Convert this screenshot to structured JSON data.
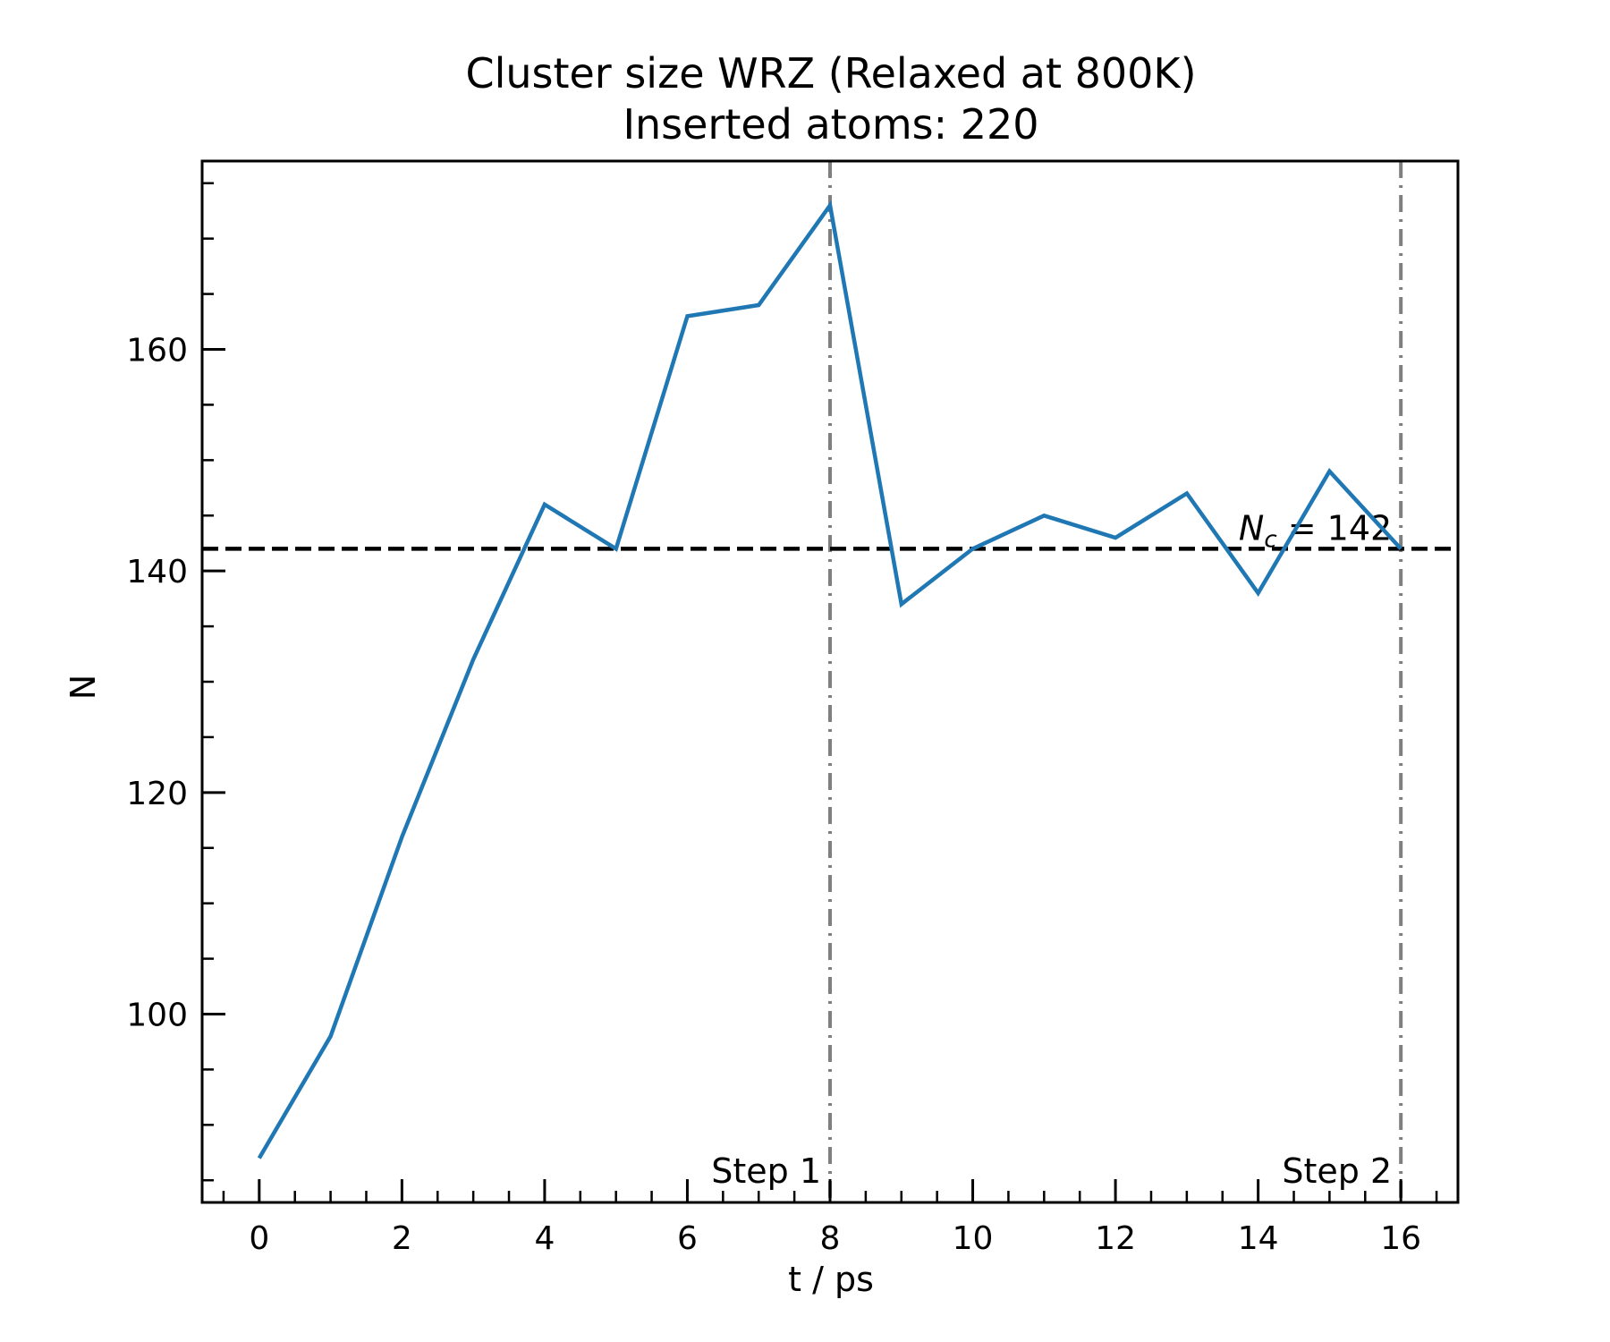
{
  "chart_data": {
    "type": "line",
    "title": "Cluster size WRZ (Relaxed at 800K)",
    "subtitle": "Inserted atoms: 220",
    "xlabel": "t / ps",
    "ylabel": "N",
    "xlim": [
      -0.8,
      16.8
    ],
    "ylim": [
      83,
      177
    ],
    "x_ticks": [
      0,
      2,
      4,
      6,
      8,
      10,
      12,
      14,
      16
    ],
    "x_tick_labels": [
      "0",
      "2",
      "4",
      "6",
      "8",
      "10",
      "12",
      "14",
      "16"
    ],
    "x_minor_step": 0.5,
    "y_ticks": [
      100,
      120,
      140,
      160
    ],
    "y_tick_labels": [
      "100",
      "120",
      "140",
      "160"
    ],
    "y_minor_step": 5,
    "grid": false,
    "series": [
      {
        "color": "#1f77b4",
        "x": [
          0,
          1,
          2,
          3,
          4,
          5,
          6,
          7,
          8,
          9,
          10,
          11,
          12,
          13,
          14,
          15,
          16
        ],
        "y": [
          87,
          98,
          116,
          132,
          146,
          142,
          163,
          164,
          173,
          137,
          142,
          145,
          143,
          147,
          138,
          149,
          142
        ]
      }
    ],
    "hlines": [
      {
        "y": 142,
        "color": "#000000",
        "style": "dashed",
        "label_math": "N",
        "label_sub": "c",
        "label_rest": " = 142"
      }
    ],
    "vlines": [
      {
        "x": 8,
        "color": "#7f7f7f",
        "style": "dashdot",
        "label": "Step 1"
      },
      {
        "x": 16,
        "color": "#7f7f7f",
        "style": "dashdot",
        "label": "Step 2"
      }
    ]
  }
}
